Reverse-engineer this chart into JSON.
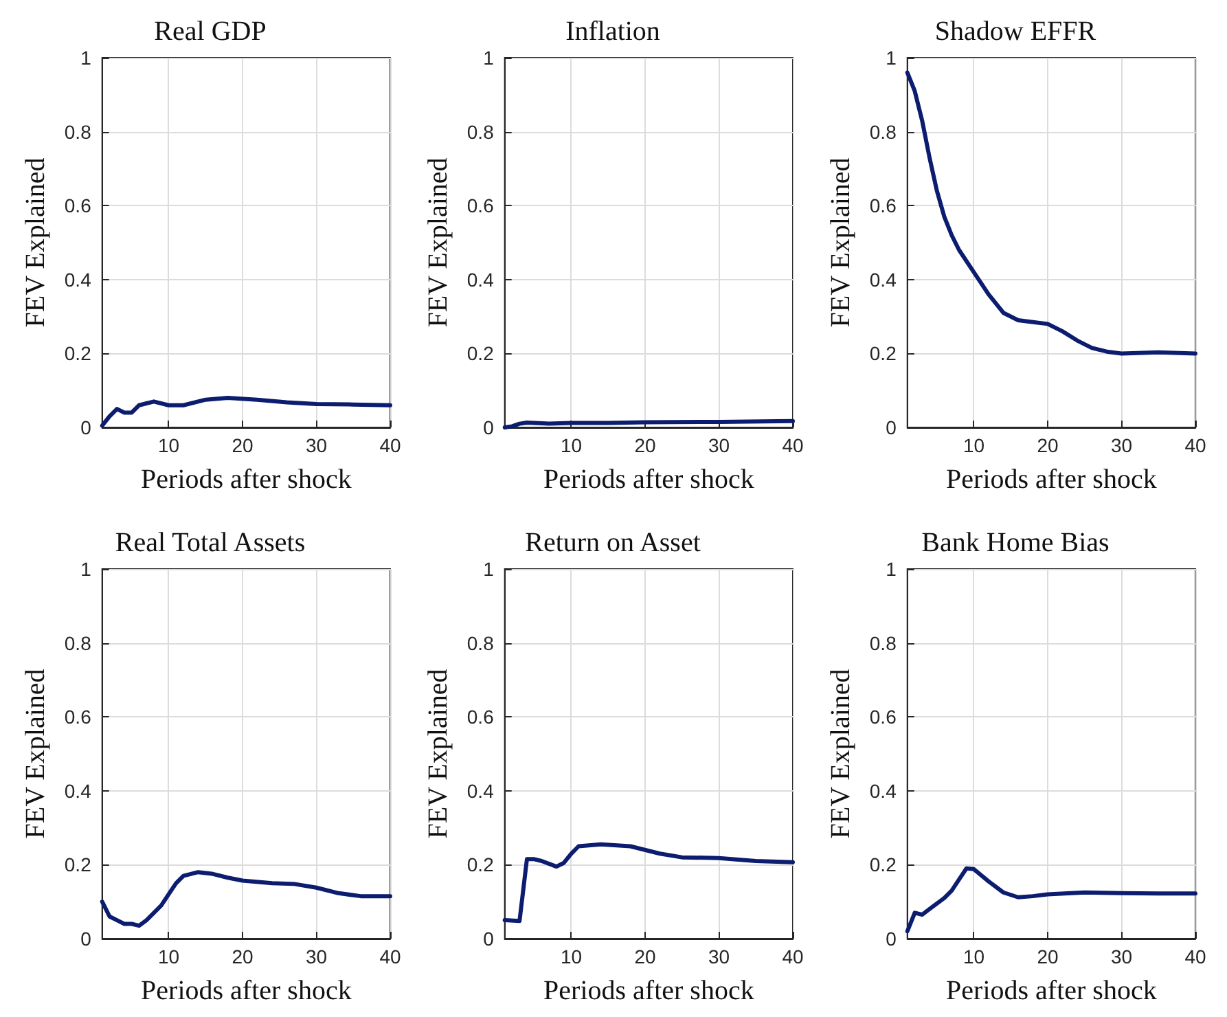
{
  "chart_data": [
    {
      "type": "line",
      "title": "Real GDP",
      "xlabel": "Periods after shock",
      "ylabel": "FEV Explained",
      "xlim": [
        1,
        40
      ],
      "xticks": [
        10,
        20,
        30,
        40
      ],
      "ylim": [
        0,
        1
      ],
      "yticks": [
        0,
        0.2,
        0.4,
        0.6,
        0.8,
        1
      ],
      "grid": true,
      "line_style": "solid",
      "marker": "none",
      "series": [
        {
          "color": "#0c1c6e",
          "x": [
            1,
            2,
            3,
            4,
            5,
            6,
            7,
            8,
            10,
            12,
            15,
            18,
            22,
            26,
            30,
            35,
            40
          ],
          "values": [
            0.005,
            0.03,
            0.05,
            0.04,
            0.04,
            0.06,
            0.065,
            0.07,
            0.06,
            0.06,
            0.075,
            0.08,
            0.075,
            0.068,
            0.063,
            0.062,
            0.06
          ]
        }
      ]
    },
    {
      "type": "line",
      "title": "Inflation",
      "xlabel": "Periods after shock",
      "ylabel": "FEV Explained",
      "xlim": [
        1,
        40
      ],
      "xticks": [
        10,
        20,
        30,
        40
      ],
      "ylim": [
        0,
        1
      ],
      "yticks": [
        0,
        0.2,
        0.4,
        0.6,
        0.8,
        1
      ],
      "grid": true,
      "line_style": "solid",
      "marker": "none",
      "series": [
        {
          "color": "#0c1c6e",
          "x": [
            1,
            2,
            3,
            4,
            5,
            7,
            10,
            15,
            20,
            30,
            40
          ],
          "values": [
            0,
            0.003,
            0.01,
            0.013,
            0.012,
            0.01,
            0.012,
            0.012,
            0.014,
            0.015,
            0.017
          ]
        }
      ]
    },
    {
      "type": "line",
      "title": "Shadow EFFR",
      "xlabel": "Periods after shock",
      "ylabel": "FEV Explained",
      "xlim": [
        1,
        40
      ],
      "xticks": [
        10,
        20,
        30,
        40
      ],
      "ylim": [
        0,
        1
      ],
      "yticks": [
        0,
        0.2,
        0.4,
        0.6,
        0.8,
        1
      ],
      "grid": true,
      "line_style": "solid",
      "marker": "none",
      "series": [
        {
          "color": "#0c1c6e",
          "x": [
            1,
            2,
            3,
            4,
            5,
            6,
            7,
            8,
            10,
            12,
            14,
            16,
            18,
            20,
            22,
            24,
            26,
            28,
            30,
            35,
            40
          ],
          "values": [
            0.96,
            0.91,
            0.83,
            0.73,
            0.64,
            0.57,
            0.52,
            0.48,
            0.42,
            0.36,
            0.31,
            0.29,
            0.285,
            0.28,
            0.26,
            0.235,
            0.215,
            0.205,
            0.2,
            0.203,
            0.2
          ]
        }
      ]
    },
    {
      "type": "line",
      "title": "Real Total Assets",
      "xlabel": "Periods after shock",
      "ylabel": "FEV Explained",
      "xlim": [
        1,
        40
      ],
      "xticks": [
        10,
        20,
        30,
        40
      ],
      "ylim": [
        0,
        1
      ],
      "yticks": [
        0,
        0.2,
        0.4,
        0.6,
        0.8,
        1
      ],
      "grid": true,
      "line_style": "solid",
      "marker": "none",
      "series": [
        {
          "color": "#0c1c6e",
          "x": [
            1,
            2,
            3,
            4,
            5,
            6,
            7,
            8,
            9,
            10,
            11,
            12,
            14,
            16,
            18,
            20,
            24,
            27,
            30,
            33,
            36,
            40
          ],
          "values": [
            0.1,
            0.06,
            0.05,
            0.04,
            0.04,
            0.035,
            0.05,
            0.07,
            0.09,
            0.12,
            0.15,
            0.17,
            0.18,
            0.175,
            0.165,
            0.157,
            0.15,
            0.148,
            0.138,
            0.123,
            0.115,
            0.115
          ]
        }
      ]
    },
    {
      "type": "line",
      "title": "Return on Asset",
      "xlabel": "Periods after shock",
      "ylabel": "FEV Explained",
      "xlim": [
        1,
        40
      ],
      "xticks": [
        10,
        20,
        30,
        40
      ],
      "ylim": [
        0,
        1
      ],
      "yticks": [
        0,
        0.2,
        0.4,
        0.6,
        0.8,
        1
      ],
      "grid": true,
      "line_style": "solid",
      "marker": "none",
      "series": [
        {
          "color": "#0c1c6e",
          "x": [
            1,
            3,
            4,
            5,
            6,
            8,
            9,
            10,
            11,
            14,
            18,
            22,
            25,
            30,
            35,
            40
          ],
          "values": [
            0.05,
            0.048,
            0.215,
            0.215,
            0.21,
            0.195,
            0.205,
            0.23,
            0.25,
            0.255,
            0.25,
            0.23,
            0.22,
            0.218,
            0.21,
            0.207
          ]
        }
      ]
    },
    {
      "type": "line",
      "title": "Bank Home Bias",
      "xlabel": "Periods after shock",
      "ylabel": "FEV Explained",
      "xlim": [
        1,
        40
      ],
      "xticks": [
        10,
        20,
        30,
        40
      ],
      "ylim": [
        0,
        1
      ],
      "yticks": [
        0,
        0.2,
        0.4,
        0.6,
        0.8,
        1
      ],
      "grid": true,
      "line_style": "solid",
      "marker": "none",
      "series": [
        {
          "color": "#0c1c6e",
          "x": [
            1,
            2,
            3,
            4,
            6,
            7,
            8,
            9,
            10,
            12,
            14,
            16,
            18,
            20,
            25,
            30,
            35,
            40
          ],
          "values": [
            0.02,
            0.07,
            0.065,
            0.08,
            0.11,
            0.13,
            0.16,
            0.19,
            0.188,
            0.155,
            0.125,
            0.112,
            0.115,
            0.12,
            0.125,
            0.123,
            0.122,
            0.122
          ]
        }
      ]
    }
  ]
}
